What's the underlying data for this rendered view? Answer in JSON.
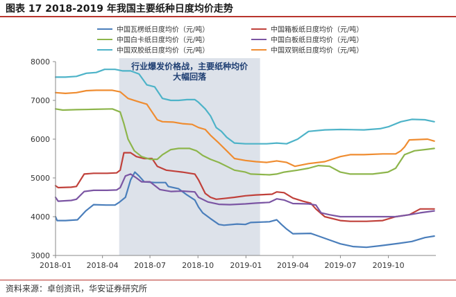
{
  "figure_title": "图表 17 2018-2019 年我国主要纸种日度均价走势",
  "source": "资料来源：卓创资讯，华安证券研究所",
  "chart_data": {
    "type": "line",
    "title": "",
    "xlabel": "",
    "ylabel": "",
    "x_ticks": [
      "2018-01",
      "2018-04",
      "2018-07",
      "2018-10",
      "2019-01",
      "2019-04",
      "2019-07",
      "2019-10"
    ],
    "ylim": [
      3000,
      8000
    ],
    "y_ticks": [
      "3000",
      "4000",
      "5000",
      "6000",
      "7000",
      "8000"
    ],
    "grid": false,
    "legend_position": "top",
    "annotation": {
      "text_lines": [
        "行业爆发价格战，主要纸种均价",
        "大幅回落"
      ],
      "x_start": "2018-05-03",
      "x_end": "2019-01-28"
    },
    "series": [
      {
        "name": "中国瓦楞纸日度均价（元/吨）",
        "color": "#4a7ebb",
        "points": [
          [
            "2018-01-01",
            4000
          ],
          [
            "2018-01-04",
            3900
          ],
          [
            "2018-01-20",
            3900
          ],
          [
            "2018-02-12",
            3920
          ],
          [
            "2018-02-28",
            4150
          ],
          [
            "2018-03-15",
            4310
          ],
          [
            "2018-04-08",
            4300
          ],
          [
            "2018-04-25",
            4300
          ],
          [
            "2018-05-03",
            4370
          ],
          [
            "2018-05-15",
            4500
          ],
          [
            "2018-05-25",
            4950
          ],
          [
            "2018-06-02",
            5150
          ],
          [
            "2018-06-10",
            5050
          ],
          [
            "2018-06-20",
            4900
          ],
          [
            "2018-07-10",
            4880
          ],
          [
            "2018-07-31",
            4880
          ],
          [
            "2018-08-05",
            4780
          ],
          [
            "2018-08-25",
            4720
          ],
          [
            "2018-09-10",
            4560
          ],
          [
            "2018-09-25",
            4430
          ],
          [
            "2018-10-02",
            4250
          ],
          [
            "2018-10-10",
            4100
          ],
          [
            "2018-10-25",
            3950
          ],
          [
            "2018-11-10",
            3800
          ],
          [
            "2018-11-20",
            3780
          ],
          [
            "2018-12-15",
            3810
          ],
          [
            "2018-12-31",
            3800
          ],
          [
            "2019-01-10",
            3850
          ],
          [
            "2019-02-15",
            3870
          ],
          [
            "2019-03-01",
            3920
          ],
          [
            "2019-03-10",
            3800
          ],
          [
            "2019-03-20",
            3680
          ],
          [
            "2019-04-01",
            3560
          ],
          [
            "2019-05-05",
            3570
          ],
          [
            "2019-05-20",
            3500
          ],
          [
            "2019-06-10",
            3400
          ],
          [
            "2019-07-01",
            3300
          ],
          [
            "2019-07-25",
            3230
          ],
          [
            "2019-08-20",
            3210
          ],
          [
            "2019-09-15",
            3250
          ],
          [
            "2019-10-20",
            3310
          ],
          [
            "2019-11-15",
            3360
          ],
          [
            "2019-12-10",
            3460
          ],
          [
            "2019-12-28",
            3500
          ]
        ]
      },
      {
        "name": "中国箱板纸日度均价（元/吨）",
        "color": "#c0403a",
        "points": [
          [
            "2018-01-01",
            4800
          ],
          [
            "2018-01-06",
            4750
          ],
          [
            "2018-01-31",
            4760
          ],
          [
            "2018-02-10",
            4780
          ],
          [
            "2018-02-25",
            5100
          ],
          [
            "2018-03-15",
            5120
          ],
          [
            "2018-04-10",
            5120
          ],
          [
            "2018-04-28",
            5130
          ],
          [
            "2018-05-05",
            5200
          ],
          [
            "2018-05-12",
            5650
          ],
          [
            "2018-05-25",
            5650
          ],
          [
            "2018-06-05",
            5550
          ],
          [
            "2018-06-20",
            5500
          ],
          [
            "2018-07-05",
            5500
          ],
          [
            "2018-07-15",
            5300
          ],
          [
            "2018-08-01",
            5200
          ],
          [
            "2018-09-01",
            5150
          ],
          [
            "2018-09-25",
            5100
          ],
          [
            "2018-10-02",
            4950
          ],
          [
            "2018-10-15",
            4600
          ],
          [
            "2018-10-25",
            4500
          ],
          [
            "2018-11-05",
            4450
          ],
          [
            "2018-11-20",
            4470
          ],
          [
            "2018-12-10",
            4500
          ],
          [
            "2018-12-31",
            4540
          ],
          [
            "2019-01-20",
            4560
          ],
          [
            "2019-02-20",
            4580
          ],
          [
            "2019-03-01",
            4640
          ],
          [
            "2019-03-15",
            4620
          ],
          [
            "2019-04-01",
            4480
          ],
          [
            "2019-04-20",
            4400
          ],
          [
            "2019-05-05",
            4350
          ],
          [
            "2019-05-15",
            4200
          ],
          [
            "2019-06-01",
            4000
          ],
          [
            "2019-07-01",
            3900
          ],
          [
            "2019-07-20",
            3880
          ],
          [
            "2019-08-20",
            3880
          ],
          [
            "2019-09-20",
            3900
          ],
          [
            "2019-10-15",
            4000
          ],
          [
            "2019-11-10",
            4050
          ],
          [
            "2019-12-01",
            4200
          ],
          [
            "2019-12-28",
            4200
          ]
        ]
      },
      {
        "name": "中国白卡纸日度均价（元/吨）",
        "color": "#8db54b",
        "points": [
          [
            "2018-01-01",
            6780
          ],
          [
            "2018-01-15",
            6750
          ],
          [
            "2018-02-10",
            6760
          ],
          [
            "2018-03-15",
            6770
          ],
          [
            "2018-04-20",
            6780
          ],
          [
            "2018-05-05",
            6700
          ],
          [
            "2018-05-12",
            6400
          ],
          [
            "2018-05-20",
            6000
          ],
          [
            "2018-06-01",
            5700
          ],
          [
            "2018-06-15",
            5550
          ],
          [
            "2018-07-01",
            5480
          ],
          [
            "2018-07-15",
            5480
          ],
          [
            "2018-07-25",
            5600
          ],
          [
            "2018-08-10",
            5730
          ],
          [
            "2018-08-25",
            5760
          ],
          [
            "2018-09-15",
            5760
          ],
          [
            "2018-09-28",
            5700
          ],
          [
            "2018-10-10",
            5580
          ],
          [
            "2018-10-25",
            5480
          ],
          [
            "2018-11-10",
            5400
          ],
          [
            "2018-11-25",
            5300
          ],
          [
            "2018-12-10",
            5200
          ],
          [
            "2018-12-31",
            5150
          ],
          [
            "2019-01-10",
            5100
          ],
          [
            "2019-02-15",
            5080
          ],
          [
            "2019-03-01",
            5100
          ],
          [
            "2019-03-15",
            5150
          ],
          [
            "2019-04-10",
            5200
          ],
          [
            "2019-05-01",
            5250
          ],
          [
            "2019-05-20",
            5320
          ],
          [
            "2019-06-10",
            5300
          ],
          [
            "2019-07-01",
            5150
          ],
          [
            "2019-07-20",
            5100
          ],
          [
            "2019-09-01",
            5100
          ],
          [
            "2019-09-30",
            5150
          ],
          [
            "2019-10-15",
            5250
          ],
          [
            "2019-11-01",
            5600
          ],
          [
            "2019-11-20",
            5700
          ],
          [
            "2019-12-15",
            5740
          ],
          [
            "2019-12-28",
            5760
          ]
        ]
      },
      {
        "name": "中国白板纸日度均价（元/吨）",
        "color": "#7b55a3",
        "points": [
          [
            "2018-01-01",
            4500
          ],
          [
            "2018-01-06",
            4400
          ],
          [
            "2018-01-31",
            4420
          ],
          [
            "2018-02-10",
            4450
          ],
          [
            "2018-02-25",
            4650
          ],
          [
            "2018-03-15",
            4680
          ],
          [
            "2018-04-10",
            4680
          ],
          [
            "2018-04-28",
            4690
          ],
          [
            "2018-05-05",
            4750
          ],
          [
            "2018-05-15",
            5050
          ],
          [
            "2018-05-25",
            5100
          ],
          [
            "2018-06-05",
            5000
          ],
          [
            "2018-06-15",
            4900
          ],
          [
            "2018-07-01",
            4900
          ],
          [
            "2018-07-20",
            4700
          ],
          [
            "2018-08-10",
            4650
          ],
          [
            "2018-09-01",
            4660
          ],
          [
            "2018-09-25",
            4640
          ],
          [
            "2018-10-02",
            4500
          ],
          [
            "2018-10-20",
            4380
          ],
          [
            "2018-11-10",
            4320
          ],
          [
            "2018-12-01",
            4310
          ],
          [
            "2018-12-31",
            4330
          ],
          [
            "2019-01-20",
            4350
          ],
          [
            "2019-02-15",
            4370
          ],
          [
            "2019-03-01",
            4460
          ],
          [
            "2019-03-15",
            4430
          ],
          [
            "2019-04-01",
            4340
          ],
          [
            "2019-05-01",
            4330
          ],
          [
            "2019-05-15",
            4300
          ],
          [
            "2019-05-25",
            4100
          ],
          [
            "2019-06-10",
            4050
          ],
          [
            "2019-07-01",
            4000
          ],
          [
            "2019-08-15",
            4000
          ],
          [
            "2019-09-20",
            4000
          ],
          [
            "2019-10-15",
            4000
          ],
          [
            "2019-11-10",
            4050
          ],
          [
            "2019-12-01",
            4100
          ],
          [
            "2019-12-28",
            4150
          ]
        ]
      },
      {
        "name": "中国双胶纸日度均价（元/吨）",
        "color": "#4db3c8",
        "points": [
          [
            "2018-01-01",
            7600
          ],
          [
            "2018-01-20",
            7600
          ],
          [
            "2018-02-10",
            7620
          ],
          [
            "2018-03-01",
            7700
          ],
          [
            "2018-03-20",
            7720
          ],
          [
            "2018-04-05",
            7800
          ],
          [
            "2018-04-25",
            7800
          ],
          [
            "2018-05-10",
            7760
          ],
          [
            "2018-05-25",
            7760
          ],
          [
            "2018-06-10",
            7680
          ],
          [
            "2018-06-25",
            7400
          ],
          [
            "2018-07-10",
            7350
          ],
          [
            "2018-07-25",
            7050
          ],
          [
            "2018-08-10",
            7000
          ],
          [
            "2018-08-25",
            7000
          ],
          [
            "2018-09-10",
            7020
          ],
          [
            "2018-09-25",
            7020
          ],
          [
            "2018-10-02",
            6950
          ],
          [
            "2018-10-15",
            6780
          ],
          [
            "2018-10-25",
            6600
          ],
          [
            "2018-11-05",
            6300
          ],
          [
            "2018-11-15",
            6200
          ],
          [
            "2018-11-25",
            6050
          ],
          [
            "2018-12-10",
            5900
          ],
          [
            "2018-12-31",
            5880
          ],
          [
            "2019-01-20",
            5880
          ],
          [
            "2019-02-10",
            5880
          ],
          [
            "2019-03-01",
            5900
          ],
          [
            "2019-03-20",
            5880
          ],
          [
            "2019-04-10",
            6000
          ],
          [
            "2019-05-01",
            6200
          ],
          [
            "2019-06-01",
            6240
          ],
          [
            "2019-07-01",
            6250
          ],
          [
            "2019-08-15",
            6240
          ],
          [
            "2019-09-15",
            6270
          ],
          [
            "2019-10-01",
            6320
          ],
          [
            "2019-10-25",
            6450
          ],
          [
            "2019-11-15",
            6510
          ],
          [
            "2019-12-10",
            6500
          ],
          [
            "2019-12-28",
            6450
          ]
        ]
      },
      {
        "name": "中国双铜纸日度均价（元/吨）",
        "color": "#ef8c30",
        "points": [
          [
            "2018-01-01",
            7200
          ],
          [
            "2018-01-20",
            7180
          ],
          [
            "2018-02-10",
            7200
          ],
          [
            "2018-03-01",
            7250
          ],
          [
            "2018-03-20",
            7260
          ],
          [
            "2018-04-20",
            7260
          ],
          [
            "2018-05-05",
            7220
          ],
          [
            "2018-05-20",
            7050
          ],
          [
            "2018-06-10",
            6960
          ],
          [
            "2018-06-25",
            6900
          ],
          [
            "2018-07-05",
            6700
          ],
          [
            "2018-07-15",
            6500
          ],
          [
            "2018-07-25",
            6450
          ],
          [
            "2018-08-15",
            6440
          ],
          [
            "2018-09-01",
            6400
          ],
          [
            "2018-09-20",
            6380
          ],
          [
            "2018-10-02",
            6300
          ],
          [
            "2018-10-15",
            6250
          ],
          [
            "2018-10-25",
            6100
          ],
          [
            "2018-11-10",
            5900
          ],
          [
            "2018-11-25",
            5700
          ],
          [
            "2018-12-10",
            5500
          ],
          [
            "2018-12-31",
            5450
          ],
          [
            "2019-01-20",
            5420
          ],
          [
            "2019-02-10",
            5400
          ],
          [
            "2019-03-01",
            5440
          ],
          [
            "2019-03-20",
            5400
          ],
          [
            "2019-04-05",
            5300
          ],
          [
            "2019-05-01",
            5370
          ],
          [
            "2019-06-01",
            5420
          ],
          [
            "2019-07-01",
            5550
          ],
          [
            "2019-07-20",
            5600
          ],
          [
            "2019-08-15",
            5600
          ],
          [
            "2019-09-20",
            5620
          ],
          [
            "2019-10-15",
            5620
          ],
          [
            "2019-10-25",
            5700
          ],
          [
            "2019-11-01",
            5800
          ],
          [
            "2019-11-10",
            5980
          ],
          [
            "2019-12-15",
            6000
          ],
          [
            "2019-12-28",
            5950
          ]
        ]
      }
    ]
  }
}
